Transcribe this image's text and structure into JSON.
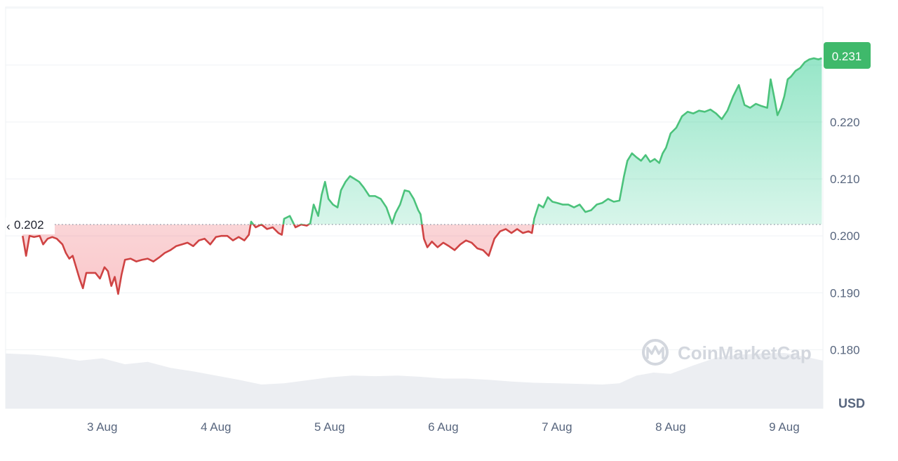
{
  "chart_data": {
    "type": "line",
    "title": "",
    "xlabel": "",
    "ylabel": "",
    "unit": "USD",
    "x_ticks": [
      "3 Aug",
      "4 Aug",
      "5 Aug",
      "6 Aug",
      "7 Aug",
      "8 Aug",
      "9 Aug"
    ],
    "y_ticks": [
      "0.180",
      "0.190",
      "0.200",
      "0.210",
      "0.220"
    ],
    "y_tick_values": [
      0.18,
      0.19,
      0.2,
      0.21,
      0.22
    ],
    "ylim": [
      0.1697,
      0.2402
    ],
    "xlim": [
      2.15,
      9.34
    ],
    "grid": true,
    "reference_price": 0.202,
    "reference_label": "0.202",
    "last_price": 0.231,
    "last_label": "0.231",
    "up_color": "#16c784",
    "down_color": "#ea3943",
    "line_up_color": "#4bc27b",
    "line_down_color": "#cf4343",
    "last_badge_color": "#3fb96b",
    "watermark": "CoinMarketCap",
    "series": [
      {
        "values": [
          [
            2.3,
            0.2
          ],
          [
            2.33,
            0.1965
          ],
          [
            2.36,
            0.2
          ],
          [
            2.4,
            0.1998
          ],
          [
            2.45,
            0.2
          ],
          [
            2.48,
            0.1985
          ],
          [
            2.52,
            0.1995
          ],
          [
            2.56,
            0.1998
          ],
          [
            2.6,
            0.1995
          ],
          [
            2.65,
            0.1985
          ],
          [
            2.68,
            0.197
          ],
          [
            2.71,
            0.196
          ],
          [
            2.74,
            0.1965
          ],
          [
            2.77,
            0.1945
          ],
          [
            2.8,
            0.1925
          ],
          [
            2.83,
            0.1908
          ],
          [
            2.86,
            0.1935
          ],
          [
            2.9,
            0.1935
          ],
          [
            2.94,
            0.1935
          ],
          [
            2.98,
            0.1925
          ],
          [
            3.02,
            0.1945
          ],
          [
            3.05,
            0.1938
          ],
          [
            3.08,
            0.1912
          ],
          [
            3.11,
            0.1928
          ],
          [
            3.14,
            0.1898
          ],
          [
            3.17,
            0.1932
          ],
          [
            3.2,
            0.1958
          ],
          [
            3.25,
            0.196
          ],
          [
            3.3,
            0.1955
          ],
          [
            3.35,
            0.1958
          ],
          [
            3.4,
            0.196
          ],
          [
            3.45,
            0.1955
          ],
          [
            3.5,
            0.1962
          ],
          [
            3.55,
            0.197
          ],
          [
            3.6,
            0.1975
          ],
          [
            3.65,
            0.1982
          ],
          [
            3.7,
            0.1985
          ],
          [
            3.75,
            0.1988
          ],
          [
            3.8,
            0.1982
          ],
          [
            3.85,
            0.1992
          ],
          [
            3.9,
            0.1995
          ],
          [
            3.95,
            0.1985
          ],
          [
            4.0,
            0.1998
          ],
          [
            4.05,
            0.2
          ],
          [
            4.1,
            0.2
          ],
          [
            4.15,
            0.1992
          ],
          [
            4.2,
            0.1998
          ],
          [
            4.25,
            0.1992
          ],
          [
            4.29,
            0.2002
          ],
          [
            4.31,
            0.2025
          ],
          [
            4.35,
            0.2015
          ],
          [
            4.4,
            0.202
          ],
          [
            4.45,
            0.2012
          ],
          [
            4.5,
            0.2015
          ],
          [
            4.55,
            0.2005
          ],
          [
            4.58,
            0.2002
          ],
          [
            4.6,
            0.203
          ],
          [
            4.65,
            0.2035
          ],
          [
            4.7,
            0.2015
          ],
          [
            4.75,
            0.202
          ],
          [
            4.8,
            0.2018
          ],
          [
            4.83,
            0.2022
          ],
          [
            4.86,
            0.2055
          ],
          [
            4.9,
            0.2035
          ],
          [
            4.93,
            0.2072
          ],
          [
            4.96,
            0.2095
          ],
          [
            4.99,
            0.2065
          ],
          [
            5.03,
            0.2055
          ],
          [
            5.07,
            0.205
          ],
          [
            5.1,
            0.208
          ],
          [
            5.14,
            0.2095
          ],
          [
            5.18,
            0.2105
          ],
          [
            5.22,
            0.21
          ],
          [
            5.26,
            0.2095
          ],
          [
            5.3,
            0.2085
          ],
          [
            5.35,
            0.207
          ],
          [
            5.4,
            0.207
          ],
          [
            5.45,
            0.2065
          ],
          [
            5.5,
            0.205
          ],
          [
            5.55,
            0.2022
          ],
          [
            5.58,
            0.204
          ],
          [
            5.62,
            0.2055
          ],
          [
            5.66,
            0.208
          ],
          [
            5.7,
            0.2078
          ],
          [
            5.74,
            0.2065
          ],
          [
            5.78,
            0.2045
          ],
          [
            5.8,
            0.2038
          ],
          [
            5.83,
            0.1995
          ],
          [
            5.86,
            0.198
          ],
          [
            5.9,
            0.199
          ],
          [
            5.95,
            0.198
          ],
          [
            6.0,
            0.1988
          ],
          [
            6.05,
            0.1982
          ],
          [
            6.1,
            0.1975
          ],
          [
            6.15,
            0.1985
          ],
          [
            6.2,
            0.1992
          ],
          [
            6.25,
            0.1988
          ],
          [
            6.3,
            0.1978
          ],
          [
            6.35,
            0.1975
          ],
          [
            6.4,
            0.1965
          ],
          [
            6.45,
            0.1995
          ],
          [
            6.5,
            0.2008
          ],
          [
            6.55,
            0.2012
          ],
          [
            6.6,
            0.2005
          ],
          [
            6.65,
            0.2012
          ],
          [
            6.7,
            0.2005
          ],
          [
            6.75,
            0.2008
          ],
          [
            6.78,
            0.2005
          ],
          [
            6.8,
            0.203
          ],
          [
            6.84,
            0.2055
          ],
          [
            6.88,
            0.205
          ],
          [
            6.92,
            0.2068
          ],
          [
            6.96,
            0.206
          ],
          [
            7.0,
            0.2058
          ],
          [
            7.05,
            0.2055
          ],
          [
            7.1,
            0.2055
          ],
          [
            7.15,
            0.205
          ],
          [
            7.2,
            0.2055
          ],
          [
            7.25,
            0.2042
          ],
          [
            7.3,
            0.2045
          ],
          [
            7.35,
            0.2055
          ],
          [
            7.4,
            0.2058
          ],
          [
            7.45,
            0.2065
          ],
          [
            7.5,
            0.206
          ],
          [
            7.55,
            0.2062
          ],
          [
            7.59,
            0.2105
          ],
          [
            7.62,
            0.2132
          ],
          [
            7.66,
            0.2145
          ],
          [
            7.7,
            0.2138
          ],
          [
            7.74,
            0.2132
          ],
          [
            7.78,
            0.2142
          ],
          [
            7.82,
            0.213
          ],
          [
            7.86,
            0.2135
          ],
          [
            7.9,
            0.2128
          ],
          [
            7.93,
            0.2145
          ],
          [
            7.96,
            0.2155
          ],
          [
            8.0,
            0.218
          ],
          [
            8.05,
            0.219
          ],
          [
            8.1,
            0.221
          ],
          [
            8.15,
            0.2218
          ],
          [
            8.2,
            0.2215
          ],
          [
            8.25,
            0.222
          ],
          [
            8.3,
            0.2218
          ],
          [
            8.35,
            0.2222
          ],
          [
            8.4,
            0.2215
          ],
          [
            8.45,
            0.2205
          ],
          [
            8.5,
            0.222
          ],
          [
            8.55,
            0.2245
          ],
          [
            8.6,
            0.2265
          ],
          [
            8.65,
            0.223
          ],
          [
            8.7,
            0.2225
          ],
          [
            8.75,
            0.2232
          ],
          [
            8.8,
            0.2228
          ],
          [
            8.85,
            0.2225
          ],
          [
            8.88,
            0.2275
          ],
          [
            8.91,
            0.2245
          ],
          [
            8.94,
            0.2212
          ],
          [
            8.97,
            0.2225
          ],
          [
            9.0,
            0.2245
          ],
          [
            9.03,
            0.2275
          ],
          [
            9.06,
            0.228
          ],
          [
            9.1,
            0.229
          ],
          [
            9.14,
            0.2295
          ],
          [
            9.18,
            0.2305
          ],
          [
            9.22,
            0.231
          ],
          [
            9.26,
            0.2312
          ],
          [
            9.3,
            0.231
          ],
          [
            9.33,
            0.2312
          ]
        ]
      }
    ],
    "volume": {
      "values": [
        [
          2.15,
          0.92
        ],
        [
          2.4,
          0.9
        ],
        [
          2.6,
          0.86
        ],
        [
          2.8,
          0.8
        ],
        [
          3.0,
          0.84
        ],
        [
          3.2,
          0.74
        ],
        [
          3.4,
          0.78
        ],
        [
          3.6,
          0.68
        ],
        [
          3.8,
          0.62
        ],
        [
          4.0,
          0.55
        ],
        [
          4.2,
          0.48
        ],
        [
          4.4,
          0.4
        ],
        [
          4.6,
          0.42
        ],
        [
          4.8,
          0.47
        ],
        [
          5.0,
          0.52
        ],
        [
          5.2,
          0.55
        ],
        [
          5.4,
          0.54
        ],
        [
          5.6,
          0.55
        ],
        [
          5.8,
          0.53
        ],
        [
          6.0,
          0.5
        ],
        [
          6.2,
          0.5
        ],
        [
          6.4,
          0.48
        ],
        [
          6.6,
          0.45
        ],
        [
          6.8,
          0.43
        ],
        [
          7.0,
          0.42
        ],
        [
          7.2,
          0.41
        ],
        [
          7.4,
          0.4
        ],
        [
          7.55,
          0.42
        ],
        [
          7.7,
          0.55
        ],
        [
          7.85,
          0.6
        ],
        [
          8.0,
          0.58
        ],
        [
          8.2,
          0.72
        ],
        [
          8.4,
          0.85
        ],
        [
          8.6,
          0.9
        ],
        [
          8.8,
          0.92
        ],
        [
          9.0,
          0.93
        ],
        [
          9.2,
          0.86
        ],
        [
          9.34,
          0.8
        ]
      ]
    }
  }
}
